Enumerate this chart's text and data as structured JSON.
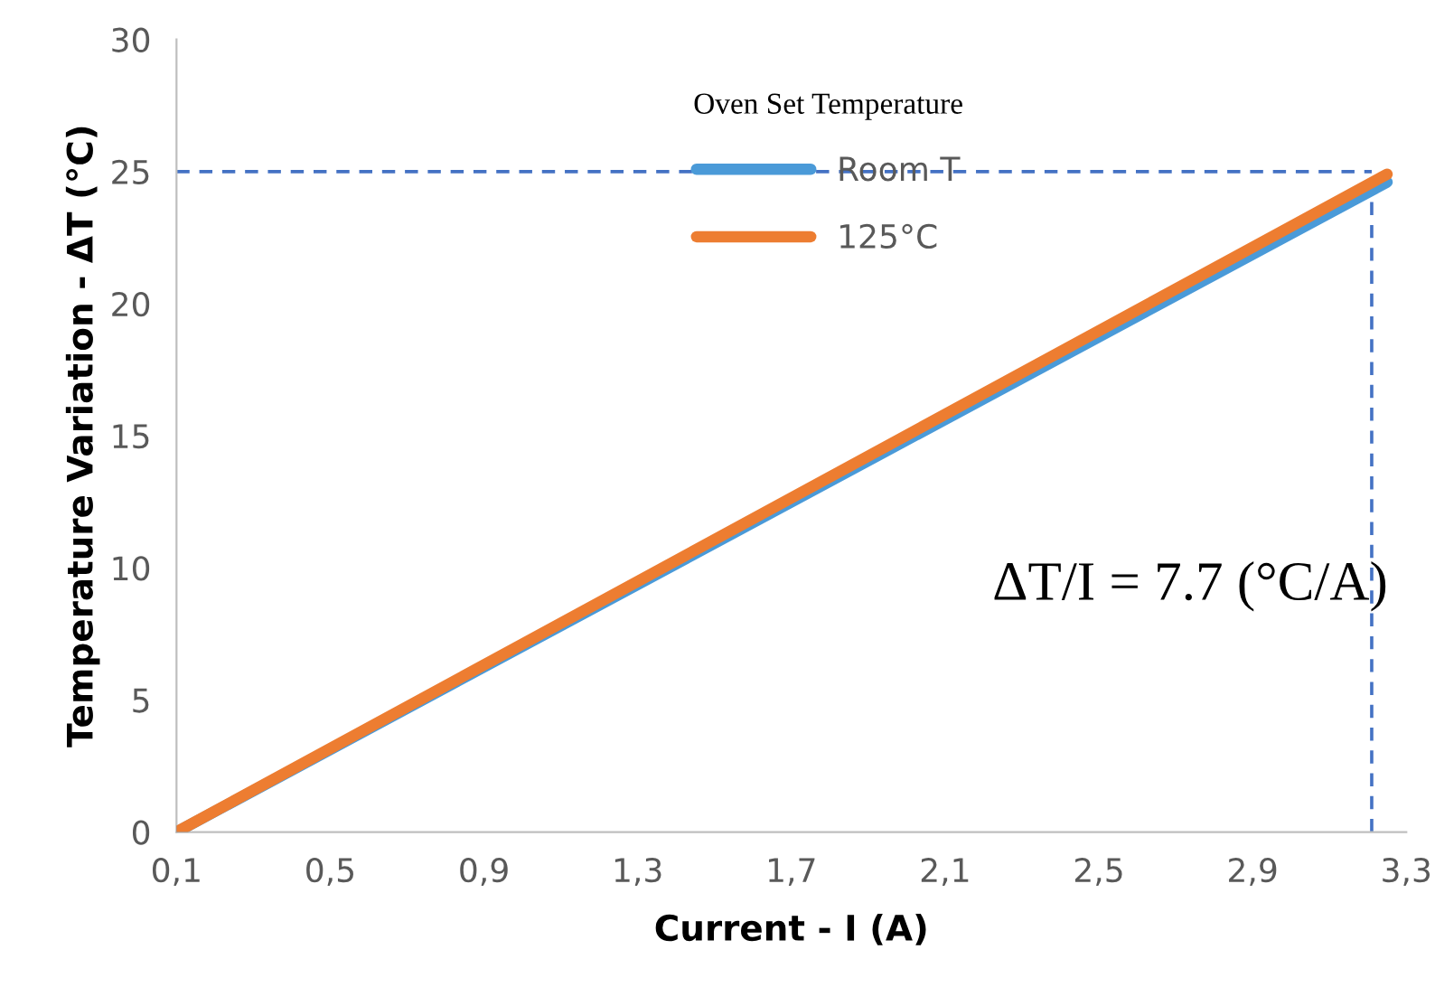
{
  "chart_data": {
    "type": "line",
    "xlabel": "Current - I (A)",
    "ylabel": "Temperature Variation - ΔT (°C)",
    "legend_title": "Oven Set Temperature",
    "legend": "top",
    "x": [
      0.1,
      3.25
    ],
    "series": [
      {
        "name": "Room T",
        "color": "#4a9ad8",
        "values": [
          0,
          24.6
        ]
      },
      {
        "name": "125°C",
        "color": "#ed7d31",
        "values": [
          0,
          24.9
        ]
      }
    ],
    "xlim": [
      0.1,
      3.3
    ],
    "xticks": [
      {
        "value": 0.1,
        "label": "0,1"
      },
      {
        "value": 0.5,
        "label": "0,5"
      },
      {
        "value": 0.9,
        "label": "0,9"
      },
      {
        "value": 1.3,
        "label": "1,3"
      },
      {
        "value": 1.7,
        "label": "1,7"
      },
      {
        "value": 2.1,
        "label": "2,1"
      },
      {
        "value": 2.5,
        "label": "2,5"
      },
      {
        "value": 2.9,
        "label": "2,9"
      },
      {
        "value": 3.3,
        "label": "3,3"
      }
    ],
    "ylim": [
      0,
      30
    ],
    "yticks": [
      0,
      5,
      10,
      15,
      20,
      25,
      30
    ],
    "ref_lines": [
      {
        "axis": "y",
        "value": 25,
        "color": "#4472c4",
        "line_style": "dashed"
      },
      {
        "axis": "x",
        "value": 3.21,
        "color": "#4472c4",
        "line_style": "dashed"
      }
    ],
    "annotations": [
      "ΔT/I = 7.7 (°C/A)"
    ],
    "grid": false,
    "marker": "none",
    "line_style": "solid"
  }
}
